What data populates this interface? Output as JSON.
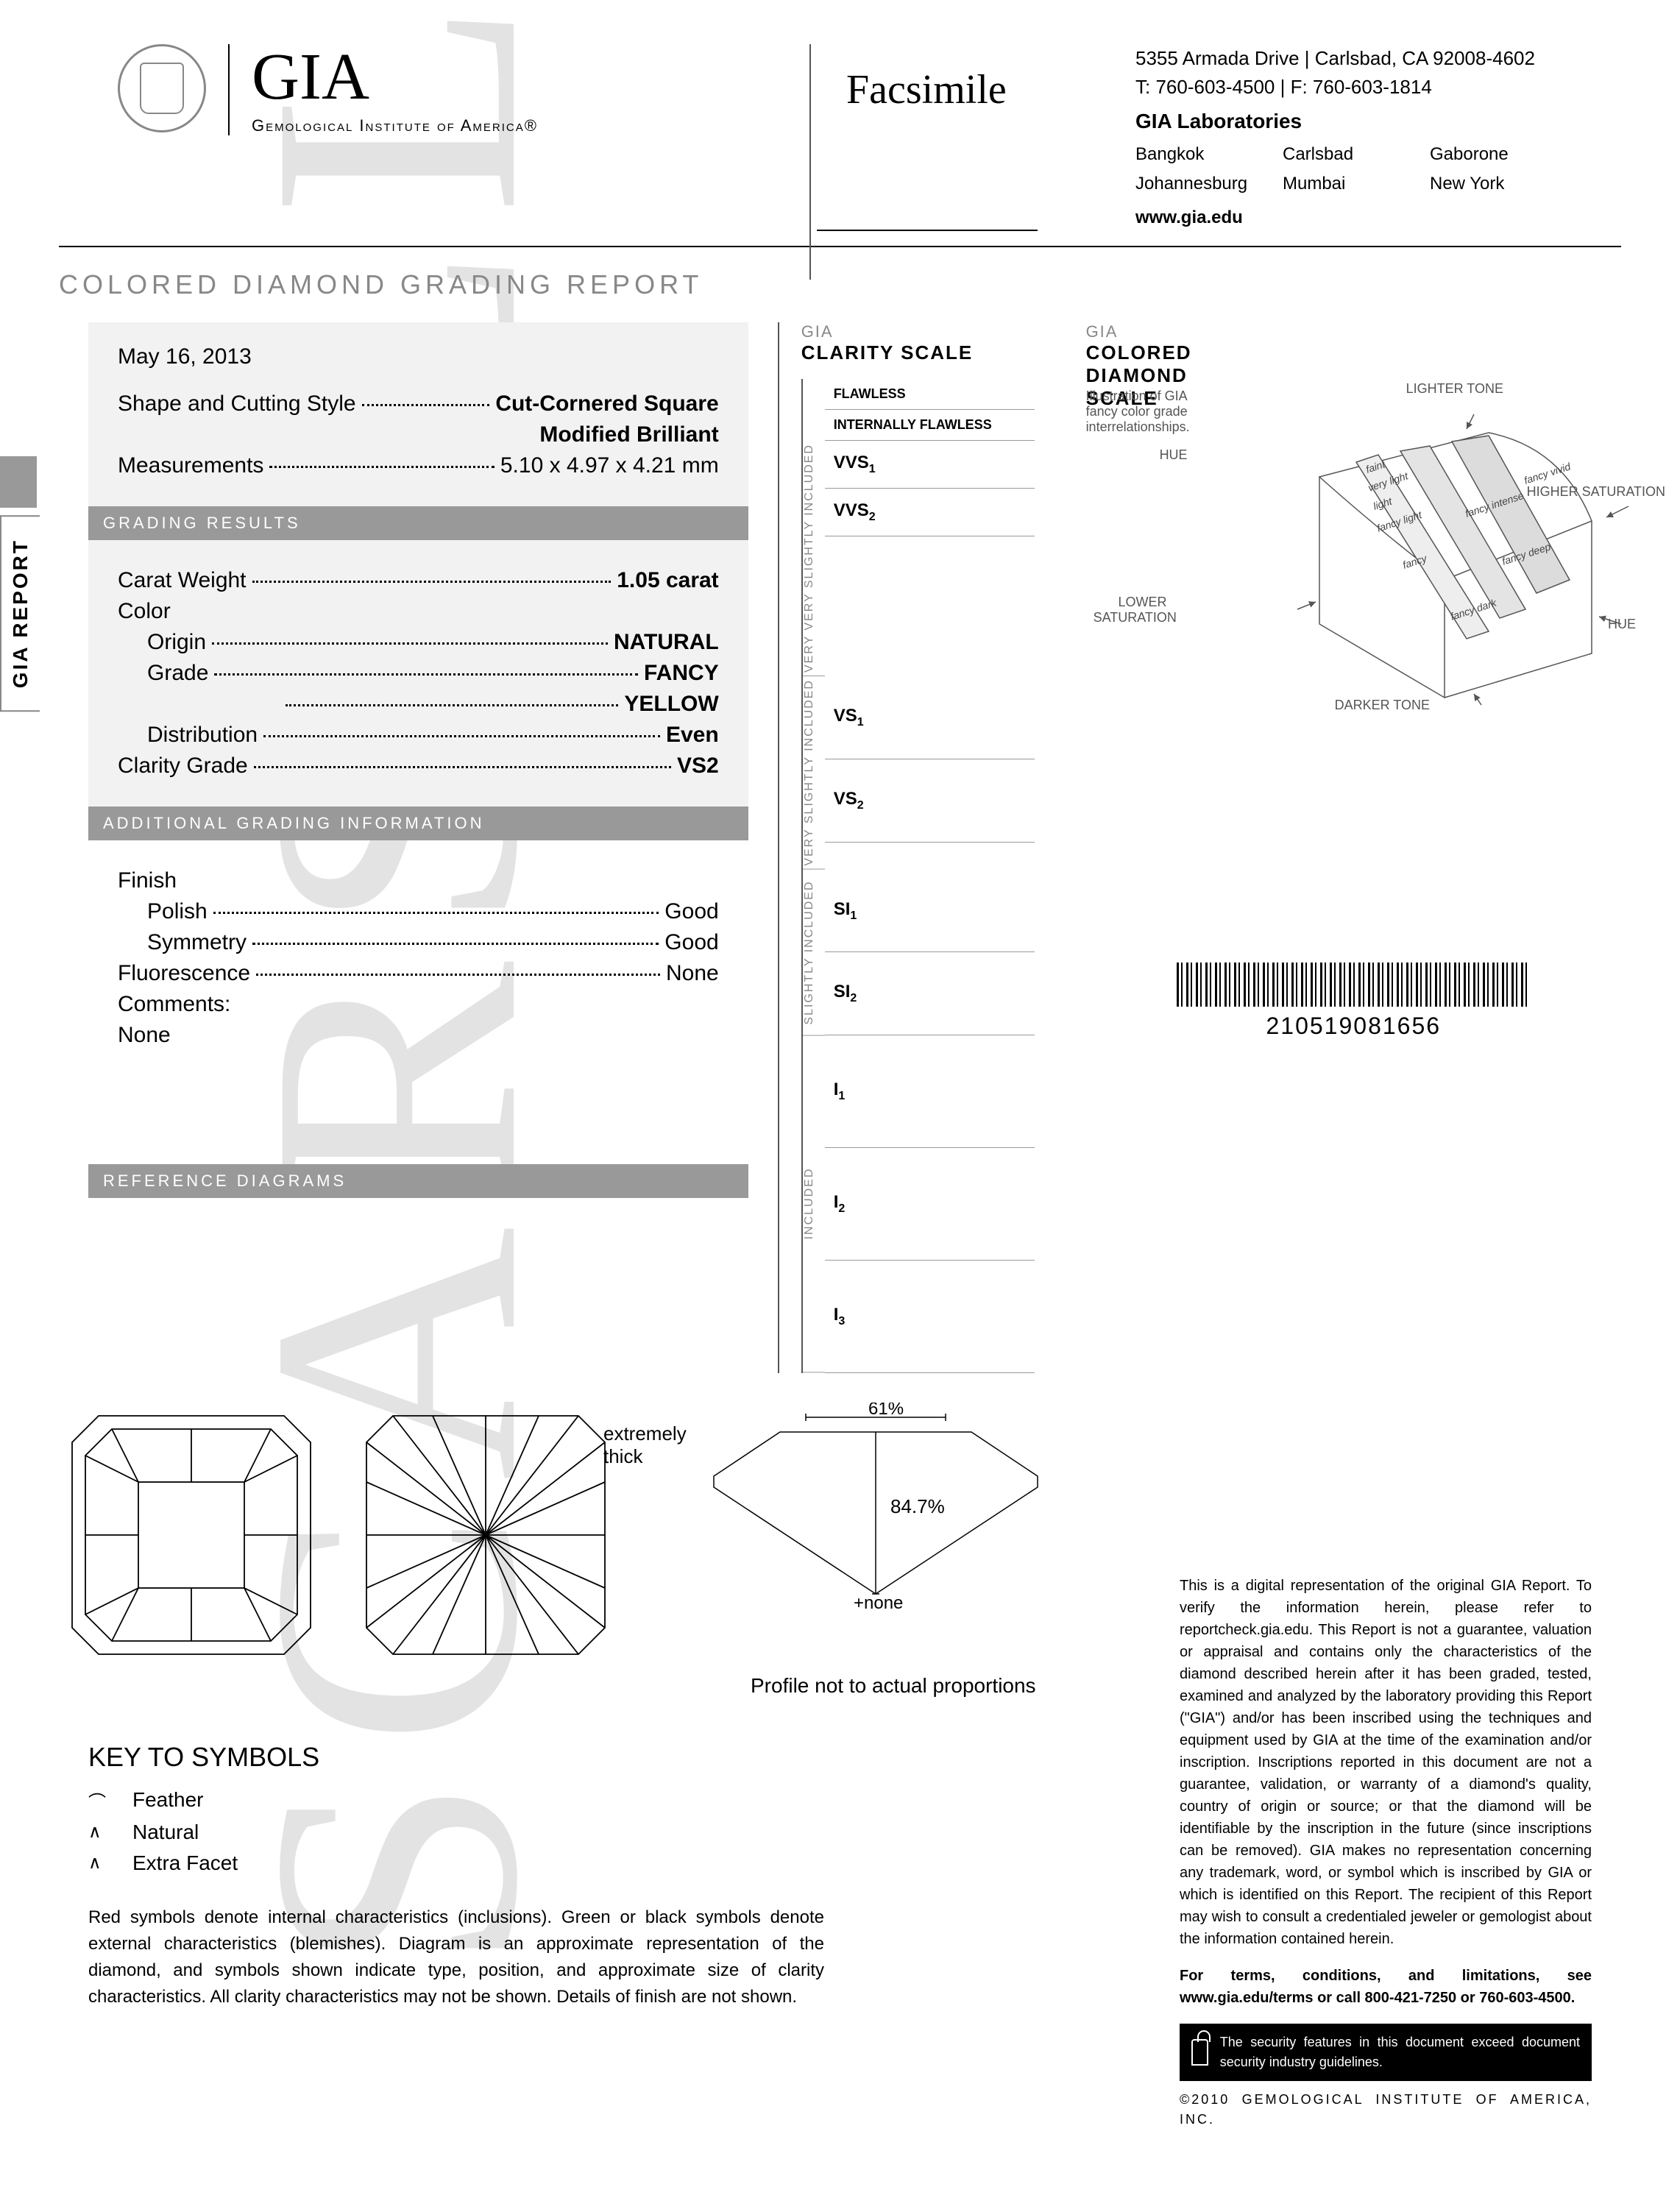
{
  "header": {
    "org_name": "GIA",
    "org_sub": "Gemological Institute of America®",
    "doc_type": "Facsimile",
    "address": "5355 Armada Drive | Carlsbad, CA 92008-4602",
    "phone": "T: 760-603-4500  |  F: 760-603-1814",
    "labs_title": "GIA Laboratories",
    "cities": [
      "Bangkok",
      "Carlsbad",
      "Gaborone",
      "Johannesburg",
      "Mumbai",
      "New York"
    ],
    "website": "www.gia.edu"
  },
  "report": {
    "title": "COLORED DIAMOND GRADING REPORT",
    "side_tab": "GIA REPORT",
    "date": "May 16, 2013",
    "shape_label": "Shape and Cutting Style",
    "shape_value1": "Cut-Cornered Square",
    "shape_value2": "Modified Brilliant",
    "measurements_label": "Measurements",
    "measurements_value": "5.10 x 4.97 x 4.21 mm"
  },
  "sections": {
    "grading": "GRADING RESULTS",
    "additional": "ADDITIONAL GRADING INFORMATION",
    "reference": "REFERENCE DIAGRAMS"
  },
  "grading": {
    "carat_label": "Carat Weight",
    "carat_value": "1.05 carat",
    "color_label": "Color",
    "origin_label": "Origin",
    "origin_value": "NATURAL",
    "grade_label": "Grade",
    "grade_value1": "FANCY",
    "grade_value2": "YELLOW",
    "dist_label": "Distribution",
    "dist_value": "Even",
    "clarity_label": "Clarity Grade",
    "clarity_value": "VS2"
  },
  "additional": {
    "finish_label": "Finish",
    "polish_label": "Polish",
    "polish_value": "Good",
    "symmetry_label": "Symmetry",
    "symmetry_value": "Good",
    "fluor_label": "Fluorescence",
    "fluor_value": "None",
    "comments_label": "Comments:",
    "comments_value": "None"
  },
  "clarity_scale": {
    "org": "GIA",
    "title": "CLARITY SCALE",
    "groups": [
      {
        "side": "",
        "items": [
          "FLAWLESS",
          "INTERNALLY FLAWLESS"
        ]
      },
      {
        "side": "VERY VERY SLIGHTLY INCLUDED",
        "items": [
          "VVS₁",
          "VVS₂"
        ]
      },
      {
        "side": "VERY SLIGHTLY INCLUDED",
        "items": [
          "VS₁",
          "VS₂"
        ]
      },
      {
        "side": "SLIGHTLY INCLUDED",
        "items": [
          "SI₁",
          "SI₂"
        ]
      },
      {
        "side": "INCLUDED",
        "items": [
          "I₁",
          "I₂",
          "I₃"
        ]
      }
    ]
  },
  "color_scale": {
    "org": "GIA",
    "title1": "COLORED",
    "title2": "DIAMOND",
    "title3": "SCALE",
    "caption": "Illustration of GIA fancy color grade interrelationships.",
    "labels": {
      "lighter": "LIGHTER TONE",
      "higher": "HIGHER SATURATION",
      "hue": "HUE",
      "darker": "DARKER TONE",
      "lower": "LOWER SATURATION"
    },
    "grades": [
      "faint",
      "very light",
      "light",
      "fancy light",
      "fancy",
      "fancy intense",
      "fancy vivid",
      "fancy deep",
      "fancy dark"
    ]
  },
  "barcode": "210519081656",
  "profile": {
    "girdle": "extremely thick",
    "table_pct": "61%",
    "depth_pct": "84.7%",
    "culet": "none",
    "caption": "Profile not to actual proportions"
  },
  "key": {
    "title": "KEY TO SYMBOLS",
    "items": [
      {
        "sym": "⌒",
        "label": "Feather"
      },
      {
        "sym": "∧",
        "label": "Natural"
      },
      {
        "sym": "∧",
        "label": "Extra Facet"
      }
    ],
    "note": "Red symbols denote internal characteristics (inclusions). Green or black symbols denote external characteristics (blemishes). Diagram is an approximate representation of the diamond, and symbols shown indicate type, position, and approximate size of clarity characteristics. All clarity characteristics may not be shown. Details of finish are not shown."
  },
  "disclaimer": {
    "text": "This is a digital representation of the original GIA Report. To verify the information herein, please refer to reportcheck.gia.edu. This Report is not a guarantee, valuation or appraisal and contains only the characteristics of the diamond described herein after it has been graded, tested, examined and analyzed by the laboratory providing this Report (\"GIA\") and/or has been inscribed using the techniques and equipment used by GIA at the time of the examination and/or inscription. Inscriptions reported in this document are not a guarantee, validation, or warranty of a diamond's quality, country of origin or source; or that the diamond will be identifiable by the inscription in the future (since inscriptions can be removed). GIA makes no representation concerning any trademark, word, or symbol which is inscribed by GIA or which is identified on this Report. The recipient of this Report may wish to consult a credentialed jeweler or gemologist about the information contained herein.",
    "terms": "For terms, conditions, and limitations, see www.gia.edu/terms or call 800-421-7250 or 760-603-4500.",
    "security": "The security features in this document exceed document security industry guidelines.",
    "copyright": "©2010  GEMOLOGICAL  INSTITUTE  OF  AMERICA,  INC."
  },
  "watermark": "SCARSELLI",
  "colors": {
    "gray_bar": "#999999",
    "text_gray": "#888888",
    "bg_block": "#f2f2f2",
    "line": "#555555"
  }
}
